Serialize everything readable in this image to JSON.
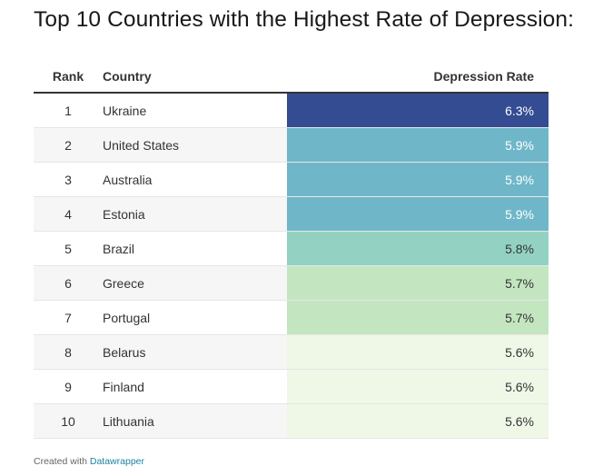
{
  "chart_data": {
    "type": "table",
    "title": "Top 10 Countries with the Highest Rate of Depression:",
    "columns": [
      "Rank",
      "Country",
      "Depression Rate"
    ],
    "rows": [
      {
        "rank": "1",
        "country": "Ukraine",
        "rate_label": "6.3%",
        "rate": 6.3,
        "color": "#334c92"
      },
      {
        "rank": "2",
        "country": "United States",
        "rate_label": "5.9%",
        "rate": 5.9,
        "color": "#6fb7c8"
      },
      {
        "rank": "3",
        "country": "Australia",
        "rate_label": "5.9%",
        "rate": 5.9,
        "color": "#6fb7c8"
      },
      {
        "rank": "4",
        "country": "Estonia",
        "rate_label": "5.9%",
        "rate": 5.9,
        "color": "#6fb7c8"
      },
      {
        "rank": "5",
        "country": "Brazil",
        "rate_label": "5.8%",
        "rate": 5.8,
        "color": "#93d2c2"
      },
      {
        "rank": "6",
        "country": "Greece",
        "rate_label": "5.7%",
        "rate": 5.7,
        "color": "#c3e6c0"
      },
      {
        "rank": "7",
        "country": "Portugal",
        "rate_label": "5.7%",
        "rate": 5.7,
        "color": "#c3e6c0"
      },
      {
        "rank": "8",
        "country": "Belarus",
        "rate_label": "5.6%",
        "rate": 5.6,
        "color": "#eff7e7"
      },
      {
        "rank": "9",
        "country": "Finland",
        "rate_label": "5.6%",
        "rate": 5.6,
        "color": "#eff7e7"
      },
      {
        "rank": "10",
        "country": "Lithuania",
        "rate_label": "5.6%",
        "rate": 5.6,
        "color": "#eff7e7"
      }
    ]
  },
  "footer": {
    "prefix": "Created with ",
    "link_text": "Datawrapper"
  }
}
